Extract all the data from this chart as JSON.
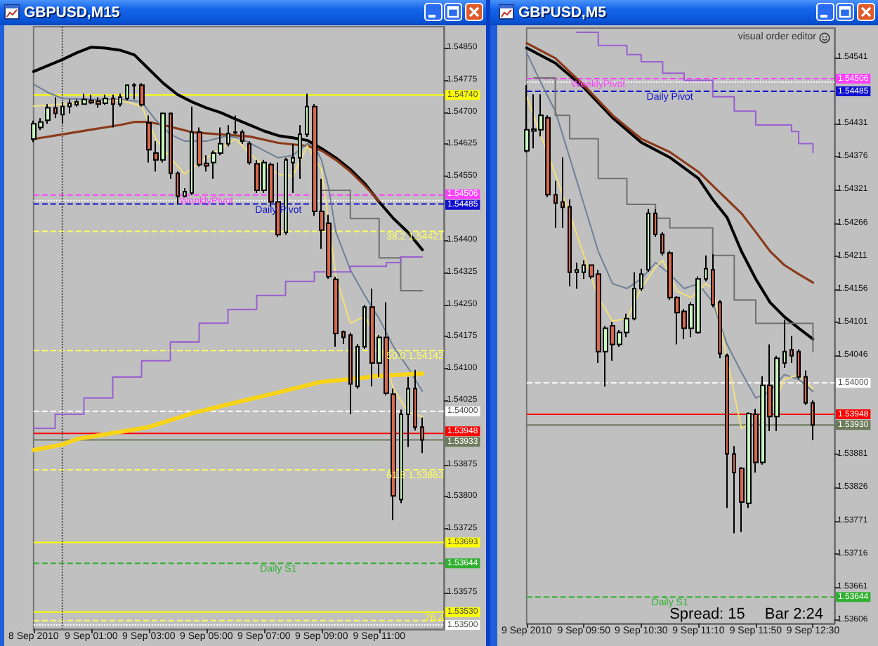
{
  "chart_data": [
    {
      "type": "candlestick",
      "title": "GBPUSD,M15",
      "x": [
        "2010-09-08T23:00",
        "2010-09-08T23:15",
        "2010-09-08T23:30",
        "2010-09-08T23:45",
        "2010-09-09T00:00",
        "2010-09-09T00:15",
        "2010-09-09T00:30",
        "2010-09-09T00:45",
        "2010-09-09T01:00",
        "2010-09-09T01:15",
        "2010-09-09T01:30",
        "2010-09-09T01:45",
        "2010-09-09T02:00",
        "2010-09-09T02:15",
        "2010-09-09T02:30",
        "2010-09-09T02:45",
        "2010-09-09T03:00",
        "2010-09-09T03:15",
        "2010-09-09T03:30",
        "2010-09-09T03:45",
        "2010-09-09T04:00",
        "2010-09-09T04:15",
        "2010-09-09T04:30",
        "2010-09-09T04:45",
        "2010-09-09T05:00",
        "2010-09-09T05:15",
        "2010-09-09T05:30",
        "2010-09-09T05:45",
        "2010-09-09T06:00",
        "2010-09-09T06:15",
        "2010-09-09T06:30",
        "2010-09-09T06:45",
        "2010-09-09T07:00",
        "2010-09-09T07:15",
        "2010-09-09T07:30",
        "2010-09-09T07:45",
        "2010-09-09T08:00",
        "2010-09-09T08:15",
        "2010-09-09T08:30",
        "2010-09-09T08:45",
        "2010-09-09T09:00",
        "2010-09-09T09:15",
        "2010-09-09T09:30",
        "2010-09-09T09:45",
        "2010-09-09T10:00",
        "2010-09-09T10:15",
        "2010-09-09T10:30",
        "2010-09-09T10:45",
        "2010-09-09T11:00",
        "2010-09-09T11:15",
        "2010-09-09T11:30",
        "2010-09-09T11:45",
        "2010-09-09T12:00",
        "2010-09-09T12:15",
        "2010-09-09T12:30"
      ],
      "ohlc": [
        [
          1.54637,
          1.5468,
          1.5463,
          1.54673
        ],
        [
          1.54664,
          1.54686,
          1.54658,
          1.54677
        ],
        [
          1.54681,
          1.54719,
          1.54673,
          1.5471
        ],
        [
          1.5471,
          1.54735,
          1.54686,
          1.54697
        ],
        [
          1.54694,
          1.54724,
          1.54673,
          1.54713
        ],
        [
          1.54713,
          1.5473,
          1.54697,
          1.54721
        ],
        [
          1.54717,
          1.5473,
          1.54713,
          1.54724
        ],
        [
          1.54719,
          1.54743,
          1.54717,
          1.5473
        ],
        [
          1.54727,
          1.54741,
          1.54719,
          1.54722
        ],
        [
          1.54726,
          1.54735,
          1.5471,
          1.54719
        ],
        [
          1.54721,
          1.54741,
          1.54717,
          1.54732
        ],
        [
          1.54732,
          1.54741,
          1.54664,
          1.54719
        ],
        [
          1.54719,
          1.54743,
          1.54713,
          1.54735
        ],
        [
          1.54732,
          1.54765,
          1.54728,
          1.54763
        ],
        [
          1.54763,
          1.54768,
          1.5473,
          1.54762
        ],
        [
          1.54763,
          1.54768,
          1.54713,
          1.54717
        ],
        [
          1.54675,
          1.54692,
          1.54582,
          1.54612
        ],
        [
          1.54604,
          1.54632,
          1.54561,
          1.54588
        ],
        [
          1.54588,
          1.54699,
          1.54582,
          1.54697
        ],
        [
          1.54697,
          1.54699,
          1.54544,
          1.54557
        ],
        [
          1.54557,
          1.54561,
          1.54484,
          1.54503
        ],
        [
          1.54503,
          1.54522,
          1.54501,
          1.54514
        ],
        [
          1.54511,
          1.54713,
          1.54506,
          1.54653
        ],
        [
          1.54653,
          1.54664,
          1.54572,
          1.54577
        ],
        [
          1.5458,
          1.54599,
          1.54561,
          1.54574
        ],
        [
          1.54582,
          1.5461,
          1.54544,
          1.54604
        ],
        [
          1.54604,
          1.54664,
          1.54599,
          1.54626
        ],
        [
          1.54626,
          1.5467,
          1.5462,
          1.5465
        ],
        [
          1.54652,
          1.54692,
          1.54648,
          1.54653
        ],
        [
          1.54653,
          1.54659,
          1.54626,
          1.54632
        ],
        [
          1.54626,
          1.54632,
          1.54577,
          1.54582
        ],
        [
          1.54579,
          1.54588,
          1.54511,
          1.54517
        ],
        [
          1.54517,
          1.54588,
          1.54511,
          1.54582
        ],
        [
          1.54577,
          1.54582,
          1.54479,
          1.5449
        ],
        [
          1.5449,
          1.54582,
          1.54408,
          1.54413
        ],
        [
          1.54419,
          1.54593,
          1.54413,
          1.54588
        ],
        [
          1.54582,
          1.54626,
          1.54511,
          1.54593
        ],
        [
          1.54593,
          1.5467,
          1.54544,
          1.54648
        ],
        [
          1.54648,
          1.54743,
          1.54642,
          1.54713
        ],
        [
          1.54713,
          1.54719,
          1.54457,
          1.54468
        ],
        [
          1.54468,
          1.54544,
          1.5438,
          1.54424
        ],
        [
          1.5444,
          1.5446,
          1.5431,
          1.54315
        ],
        [
          1.54309,
          1.54315,
          1.54151,
          1.54182
        ],
        [
          1.54186,
          1.54189,
          1.54157,
          1.54173
        ],
        [
          1.54178,
          1.54184,
          1.53993,
          1.54064
        ],
        [
          1.54058,
          1.54157,
          1.54053,
          1.54151
        ],
        [
          1.54151,
          1.54249,
          1.54146,
          1.54244
        ],
        [
          1.54244,
          1.54287,
          1.54058,
          1.54113
        ],
        [
          1.54113,
          1.54178,
          1.5408,
          1.54173
        ],
        [
          1.54173,
          1.54255,
          1.54037,
          1.54042
        ],
        [
          1.5404,
          1.54053,
          1.53745,
          1.53802
        ],
        [
          1.53793,
          1.54004,
          1.53785,
          1.53993
        ],
        [
          1.53993,
          1.5408,
          1.53916,
          1.54053
        ],
        [
          1.54053,
          1.54097,
          1.53955,
          1.53963
        ],
        [
          1.53963,
          1.53985,
          1.53902,
          1.53933
        ]
      ],
      "colors": [
        "#c8f8c0",
        "#c8f8c0",
        "#c8f8c0",
        "#d8694d",
        "#c8f8c0",
        "#c8f8c0",
        "#c8f8c0",
        "#c8f8c0",
        "#d8694d",
        "#d8694d",
        "#c8f8c0",
        "#d8694d",
        "#c8f8c0",
        "#c8f8c0",
        "#d8694d",
        "#d8694d",
        "#d8694d",
        "#d8694d",
        "#c8f8c0",
        "#d8694d",
        "#d8694d",
        "#c8f8c0",
        "#c8f8c0",
        "#d8694d",
        "#d8694d",
        "#c8f8c0",
        "#c8f8c0",
        "#c8f8c0",
        "#c8f8c0",
        "#d8694d",
        "#d8694d",
        "#d8694d",
        "#c8f8c0",
        "#d8694d",
        "#d8694d",
        "#c8f8c0",
        "#c8f8c0",
        "#c8f8c0",
        "#c8f8c0",
        "#d8694d",
        "#d8694d",
        "#d8694d",
        "#d8694d",
        "#d8694d",
        "#d8694d",
        "#c8f8c0",
        "#c8f8c0",
        "#d8694d",
        "#c8f8c0",
        "#d8694d",
        "#d8694d",
        "#c8f8c0",
        "#c8f8c0",
        "#d8694d",
        "#d8694d"
      ],
      "series": [
        {
          "type": "line",
          "color": "#000000",
          "x": [
            "2010-09-08T23:00",
            "2010-09-09T00:00",
            "2010-09-09T00:30",
            "2010-09-09T01:00",
            "2010-09-09T01:30",
            "2010-09-09T02:00",
            "2010-09-09T02:30",
            "2010-09-09T03:00",
            "2010-09-09T03:30",
            "2010-09-09T04:00",
            "2010-09-09T04:30",
            "2010-09-09T05:00",
            "2010-09-09T05:30",
            "2010-09-09T06:00",
            "2010-09-09T06:30",
            "2010-09-09T07:00",
            "2010-09-09T07:30",
            "2010-09-09T08:00",
            "2010-09-09T08:30",
            "2010-09-09T09:00",
            "2010-09-09T09:30",
            "2010-09-09T10:00",
            "2010-09-09T10:30",
            "2010-09-09T11:00",
            "2010-09-09T11:30",
            "2010-09-09T12:00",
            "2010-09-09T12:30"
          ],
          "values": [
            1.54795,
            1.54823,
            1.54839,
            1.54852,
            1.5485,
            1.54845,
            1.54834,
            1.54801,
            1.54768,
            1.54741,
            1.54724,
            1.5471,
            1.54699,
            1.54684,
            1.5467,
            1.54656,
            1.54645,
            1.5464,
            1.54634,
            1.54615,
            1.54593,
            1.54566,
            1.54533,
            1.5449,
            1.54451,
            1.54419,
            1.54378
          ]
        },
        {
          "type": "line",
          "color": "#8b3a1a",
          "x": [
            "2010-09-08T23:00",
            "2010-09-09T00:00",
            "2010-09-09T01:00",
            "2010-09-09T02:00",
            "2010-09-09T02:30",
            "2010-09-09T03:00",
            "2010-09-09T03:30",
            "2010-09-09T04:30",
            "2010-09-09T05:30",
            "2010-09-09T06:30",
            "2010-09-09T07:30",
            "2010-09-09T08:30",
            "2010-09-09T09:00",
            "2010-09-09T09:30",
            "2010-09-09T10:00",
            "2010-09-09T10:30",
            "2010-09-09T11:00"
          ],
          "values": [
            1.54637,
            1.54648,
            1.54659,
            1.5467,
            1.54677,
            1.54677,
            1.5467,
            1.54653,
            1.54648,
            1.54643,
            1.54628,
            1.54621,
            1.5461,
            1.54588,
            1.54561,
            1.54528,
            1.54492
          ]
        },
        {
          "type": "line",
          "color": "#6e7f96",
          "x": [
            "2010-09-08T23:00",
            "2010-09-08T23:30",
            "2010-09-09T00:00",
            "2010-09-09T01:00",
            "2010-09-09T02:00",
            "2010-09-09T02:45",
            "2010-09-09T03:15",
            "2010-09-09T03:45",
            "2010-09-09T04:15",
            "2010-09-09T05:00",
            "2010-09-09T05:45",
            "2010-09-09T06:15",
            "2010-09-09T07:00",
            "2010-09-09T07:30",
            "2010-09-09T08:00",
            "2010-09-09T08:30",
            "2010-09-09T08:45",
            "2010-09-09T09:00",
            "2010-09-09T09:15",
            "2010-09-09T09:30",
            "2010-09-09T10:00",
            "2010-09-09T10:30",
            "2010-09-09T11:00",
            "2010-09-09T11:30",
            "2010-09-09T12:00",
            "2010-09-09T12:30"
          ],
          "values": [
            1.54765,
            1.54746,
            1.54732,
            1.5473,
            1.5473,
            1.54724,
            1.54681,
            1.54648,
            1.54632,
            1.54632,
            1.54645,
            1.54637,
            1.5461,
            1.54593,
            1.54599,
            1.54626,
            1.54621,
            1.54588,
            1.54522,
            1.54419,
            1.54331,
            1.54271,
            1.54217,
            1.54151,
            1.54102,
            1.54047
          ]
        },
        {
          "type": "line",
          "color": "#f2e07a",
          "x": [
            "2010-09-08T23:00",
            "2010-09-09T00:00",
            "2010-09-09T01:00",
            "2010-09-09T02:00",
            "2010-09-09T02:45",
            "2010-09-09T03:15",
            "2010-09-09T03:45",
            "2010-09-09T04:15",
            "2010-09-09T04:45",
            "2010-09-09T05:30",
            "2010-09-09T06:00",
            "2010-09-09T06:45",
            "2010-09-09T07:30",
            "2010-09-09T08:00",
            "2010-09-09T08:30",
            "2010-09-09T09:00",
            "2010-09-09T09:30",
            "2010-09-09T10:00",
            "2010-09-09T10:30",
            "2010-09-09T11:00",
            "2010-09-09T11:30",
            "2010-09-09T12:00",
            "2010-09-09T12:30"
          ],
          "values": [
            1.54714,
            1.54719,
            1.54724,
            1.54728,
            1.54714,
            1.54637,
            1.54593,
            1.54555,
            1.54582,
            1.54615,
            1.54637,
            1.54588,
            1.54555,
            1.5455,
            1.54621,
            1.54566,
            1.54315,
            1.54206,
            1.54222,
            1.54162,
            1.54053,
            1.53998,
            1.53987
          ]
        },
        {
          "type": "step",
          "color": "#707070",
          "x": [
            "2010-09-09T09:00",
            "2010-09-09T10:00",
            "2010-09-09T11:00",
            "2010-09-09T11:45",
            "2010-09-09T12:30"
          ],
          "values": [
            1.54517,
            1.54451,
            1.54359,
            1.54282,
            1.54282
          ]
        },
        {
          "type": "step",
          "color": "#9a5fd0",
          "x": [
            "2010-09-08T23:00",
            "2010-09-08T23:45",
            "2010-09-09T00:45",
            "2010-09-09T01:45",
            "2010-09-09T02:45",
            "2010-09-09T03:45",
            "2010-09-09T04:45",
            "2010-09-09T05:45",
            "2010-09-09T06:45",
            "2010-09-09T07:45",
            "2010-09-09T08:45",
            "2010-09-09T10:00",
            "2010-09-09T11:15",
            "2010-09-09T11:45",
            "2010-09-09T12:30"
          ],
          "values": [
            1.5396,
            1.53993,
            1.54031,
            1.5408,
            1.54118,
            1.54162,
            1.54206,
            1.54238,
            1.54271,
            1.54304,
            1.54326,
            1.54339,
            1.54348,
            1.54361,
            1.54361
          ]
        },
        {
          "type": "line",
          "color": "#f7d31a",
          "x": [
            "2010-09-08T23:00",
            "2010-09-09T00:00",
            "2010-09-09T00:30",
            "2010-09-09T01:30",
            "2010-09-09T03:00",
            "2010-09-09T04:30",
            "2010-09-09T06:00",
            "2010-09-09T07:30",
            "2010-09-09T09:00",
            "2010-09-09T10:00",
            "2010-09-09T11:00",
            "2010-09-09T12:30"
          ],
          "values": [
            1.53909,
            1.53922,
            1.53935,
            1.53946,
            1.53963,
            1.53995,
            1.5402,
            1.54044,
            1.54069,
            1.54075,
            1.54083,
            1.54088
          ]
        }
      ],
      "xlim": [
        "2010-09-08T23:00",
        "2010-09-09T13:15"
      ],
      "xticks": [
        {
          "value": "2010-09-08T23:00",
          "label": "8 Sep 2010"
        },
        {
          "value": "2010-09-09T01:00",
          "label": "9 Sep 01:00"
        },
        {
          "value": "2010-09-09T03:00",
          "label": "9 Sep 03:00"
        },
        {
          "value": "2010-09-09T05:00",
          "label": "9 Sep 05:00"
        },
        {
          "value": "2010-09-09T07:00",
          "label": "9 Sep 07:00"
        },
        {
          "value": "2010-09-09T09:00",
          "label": "9 Sep 09:00"
        },
        {
          "value": "2010-09-09T11:00",
          "label": "9 Sep 11:00"
        }
      ],
      "ylim": [
        1.5349,
        1.549
      ],
      "yticks": [
        {
          "value": 1.5485,
          "label": "1.54850"
        },
        1.54775,
        {
          "value": 1.547,
          "label": "1.54700"
        },
        1.54625,
        {
          "value": 1.5455,
          "label": "1.54550"
        },
        {
          "value": 1.544,
          "label": "1.54400"
        },
        1.54325,
        {
          "value": 1.5425,
          "label": "1.54250"
        },
        1.54175,
        {
          "value": 1.541,
          "label": "1.54100"
        },
        1.54025,
        1.53875,
        {
          "value": 1.538,
          "label": "1.53800"
        },
        1.53725,
        1.53575
      ],
      "ref_lines": [
        {
          "axis": "y",
          "value": 1.5474,
          "label": "1.54740",
          "color": "#ffff00"
        },
        {
          "axis": "y",
          "value": 1.54506,
          "label": "1.54506",
          "color": "#ff40ff",
          "line_style": "dashed"
        },
        {
          "axis": "y",
          "value": 1.54493,
          "color": "#ffffff",
          "line_style": "dotted"
        },
        {
          "axis": "y",
          "value": 1.54485,
          "label": "1.54485",
          "color": "#1010d0",
          "line_style": "dashed"
        },
        {
          "axis": "y",
          "value": 1.54421,
          "color": "#ffff60",
          "line_style": "dashed"
        },
        {
          "axis": "y",
          "value": 1.54142,
          "color": "#ffff60",
          "line_style": "dashed"
        },
        {
          "axis": "y",
          "value": 1.54,
          "label": "1.54000",
          "color": "#ffffff",
          "line_style": "dashed"
        },
        {
          "axis": "y",
          "value": 1.53948,
          "label": "1.53948",
          "color": "#ff0000"
        },
        {
          "axis": "y",
          "value": 1.53933,
          "label": "1.53933",
          "color": "#6b7a5a"
        },
        {
          "axis": "y",
          "value": 1.53863,
          "color": "#ffff60",
          "line_style": "dashed"
        },
        {
          "axis": "y",
          "value": 1.53693,
          "label": "1.53693",
          "color": "#ffff00"
        },
        {
          "axis": "y",
          "value": 1.53644,
          "label": "1.53644",
          "color": "#30b030",
          "line_style": "dashed"
        },
        {
          "axis": "y",
          "value": 1.5353,
          "label": "1.53530",
          "color": "#ffff00"
        },
        {
          "axis": "y",
          "value": 1.5351,
          "color": "#ffff60",
          "line_style": "dashed"
        },
        {
          "axis": "y",
          "value": 1.535,
          "label": "1.53500",
          "color": "#ffffff",
          "line_style": "dotted"
        },
        {
          "axis": "x",
          "value": "2010-09-09T00:00",
          "color": "#505050",
          "line_style": "dotted"
        }
      ],
      "annotations": [
        {
          "text": "WeeklyPivot",
          "x": "2010-09-09T05:00",
          "y": 1.54506
        },
        {
          "text": "Daily Pivot",
          "x": "2010-09-09T07:30",
          "y": 1.54485
        },
        {
          "text": "38.2 1.54421",
          "x": "2010-09-09T12:15",
          "y": 1.54421
        },
        {
          "text": "50.0 1.54142",
          "x": "2010-09-09T12:15",
          "y": 1.54142
        },
        {
          "text": "61.8 1.53863",
          "x": "2010-09-09T12:15",
          "y": 1.53863
        },
        {
          "text": "Daily S1",
          "x": "2010-09-09T07:30",
          "y": 1.53644
        },
        {
          "text": "76.4",
          "x": "2010-09-09T12:55",
          "y": 1.5353
        }
      ]
    },
    {
      "type": "candlestick",
      "title": "GBPUSD,M5",
      "x": [
        "2010-09-09T09:10",
        "2010-09-09T09:15",
        "2010-09-09T09:20",
        "2010-09-09T09:25",
        "2010-09-09T09:30",
        "2010-09-09T09:35",
        "2010-09-09T09:40",
        "2010-09-09T09:45",
        "2010-09-09T09:50",
        "2010-09-09T09:55",
        "2010-09-09T10:00",
        "2010-09-09T10:05",
        "2010-09-09T10:10",
        "2010-09-09T10:15",
        "2010-09-09T10:20",
        "2010-09-09T10:25",
        "2010-09-09T10:30",
        "2010-09-09T10:35",
        "2010-09-09T10:40",
        "2010-09-09T10:45",
        "2010-09-09T10:50",
        "2010-09-09T10:55",
        "2010-09-09T11:00",
        "2010-09-09T11:05",
        "2010-09-09T11:10",
        "2010-09-09T11:15",
        "2010-09-09T11:20",
        "2010-09-09T11:25",
        "2010-09-09T11:30",
        "2010-09-09T11:35",
        "2010-09-09T11:40",
        "2010-09-09T11:45",
        "2010-09-09T11:50",
        "2010-09-09T11:55",
        "2010-09-09T12:00",
        "2010-09-09T12:05",
        "2010-09-09T12:10",
        "2010-09-09T12:15",
        "2010-09-09T12:20",
        "2010-09-09T12:25",
        "2010-09-09T12:30"
      ],
      "ohlc": [
        [
          1.54386,
          1.54495,
          1.54383,
          1.54421
        ],
        [
          1.54419,
          1.5448,
          1.5439,
          1.54422
        ],
        [
          1.54421,
          1.5448,
          1.5441,
          1.54445
        ],
        [
          1.54441,
          1.54445,
          1.54309,
          1.54313
        ],
        [
          1.54313,
          1.54336,
          1.54258,
          1.54299
        ],
        [
          1.54301,
          1.54375,
          1.54258,
          1.54292
        ],
        [
          1.54293,
          1.54305,
          1.54161,
          1.54184
        ],
        [
          1.54184,
          1.542,
          1.54157,
          1.54188
        ],
        [
          1.54184,
          1.54204,
          1.54173,
          1.54196
        ],
        [
          1.54196,
          1.54197,
          1.54173,
          1.54177
        ],
        [
          1.54181,
          1.54188,
          1.54033,
          1.54052
        ],
        [
          1.54052,
          1.54095,
          1.53994,
          1.54091
        ],
        [
          1.54095,
          1.54101,
          1.54037,
          1.54064
        ],
        [
          1.54064,
          1.54088,
          1.5406,
          1.54084
        ],
        [
          1.54084,
          1.54115,
          1.54076,
          1.54107
        ],
        [
          1.54107,
          1.54184,
          1.54104,
          1.54157
        ],
        [
          1.54157,
          1.5419,
          1.54153,
          1.54181
        ],
        [
          1.54188,
          1.54289,
          1.54185,
          1.54282
        ],
        [
          1.54282,
          1.54289,
          1.54243,
          1.54247
        ],
        [
          1.54247,
          1.54251,
          1.54212,
          1.54216
        ],
        [
          1.54216,
          1.5422,
          1.54138,
          1.54142
        ],
        [
          1.54142,
          1.54144,
          1.54064,
          1.54117
        ],
        [
          1.54119,
          1.54123,
          1.54073,
          1.54091
        ],
        [
          1.54091,
          1.54134,
          1.54076,
          1.5413
        ],
        [
          1.54084,
          1.54177,
          1.54082,
          1.54173
        ],
        [
          1.54173,
          1.54212,
          1.54169,
          1.5419
        ],
        [
          1.54188,
          1.54214,
          1.54126,
          1.5413
        ],
        [
          1.54134,
          1.54138,
          1.54041,
          1.54049
        ],
        [
          1.54045,
          1.54049,
          1.53792,
          1.53882
        ],
        [
          1.53882,
          1.53895,
          1.5375,
          1.53851
        ],
        [
          1.53858,
          1.5386,
          1.53752,
          1.53802
        ],
        [
          1.538,
          1.53951,
          1.53792,
          1.53949
        ],
        [
          1.53948,
          1.53957,
          1.53851,
          1.53868
        ],
        [
          1.53868,
          1.54011,
          1.53864,
          1.53996
        ],
        [
          1.53996,
          1.54064,
          1.5392,
          1.53944
        ],
        [
          1.53944,
          1.54045,
          1.5392,
          1.54041
        ],
        [
          1.54033,
          1.54105,
          1.54025,
          1.54052
        ],
        [
          1.54055,
          1.54078,
          1.54033,
          1.54045
        ],
        [
          1.54052,
          1.54056,
          1.54006,
          1.5401
        ],
        [
          1.5401,
          1.54021,
          1.53963,
          1.53967
        ],
        [
          1.53967,
          1.53971,
          1.53905,
          1.5393
        ]
      ],
      "colors": [
        "#c8f8c0",
        "#c8f8c0",
        "#c8f8c0",
        "#d8694d",
        "#d8694d",
        "#d8694d",
        "#d8694d",
        "#c8f8c0",
        "#c8f8c0",
        "#d8694d",
        "#d8694d",
        "#c8f8c0",
        "#d8694d",
        "#c8f8c0",
        "#c8f8c0",
        "#c8f8c0",
        "#c8f8c0",
        "#c8f8c0",
        "#d8694d",
        "#d8694d",
        "#d8694d",
        "#d8694d",
        "#d8694d",
        "#c8f8c0",
        "#c8f8c0",
        "#c8f8c0",
        "#d8694d",
        "#d8694d",
        "#d8694d",
        "#d8694d",
        "#d8694d",
        "#c8f8c0",
        "#d8694d",
        "#c8f8c0",
        "#d8694d",
        "#c8f8c0",
        "#c8f8c0",
        "#d8694d",
        "#d8694d",
        "#d8694d",
        "#d8694d"
      ],
      "series": [
        {
          "type": "line",
          "color": "#000000",
          "x": [
            "2010-09-09T09:10",
            "2010-09-09T09:30",
            "2010-09-09T09:50",
            "2010-09-09T10:10",
            "2010-09-09T10:30",
            "2010-09-09T10:50",
            "2010-09-09T11:10",
            "2010-09-09T11:20",
            "2010-09-09T11:30",
            "2010-09-09T11:40",
            "2010-09-09T11:50",
            "2010-09-09T12:00",
            "2010-09-09T12:10",
            "2010-09-09T12:20",
            "2010-09-09T12:30"
          ],
          "values": [
            1.54557,
            1.54532,
            1.54491,
            1.54441,
            1.544,
            1.54375,
            1.5434,
            1.54305,
            1.54275,
            1.54219,
            1.54173,
            1.54134,
            1.5411,
            1.54091,
            1.54073
          ]
        },
        {
          "type": "line",
          "color": "#8b3a1a",
          "x": [
            "2010-09-09T09:10",
            "2010-09-09T09:30",
            "2010-09-09T09:50",
            "2010-09-09T10:10",
            "2010-09-09T10:30",
            "2010-09-09T10:50",
            "2010-09-09T11:10",
            "2010-09-09T11:30",
            "2010-09-09T11:40",
            "2010-09-09T11:50",
            "2010-09-09T12:00",
            "2010-09-09T12:10",
            "2010-09-09T12:20",
            "2010-09-09T12:30"
          ],
          "values": [
            1.54565,
            1.5454,
            1.54495,
            1.54445,
            1.54406,
            1.54384,
            1.54351,
            1.54305,
            1.54282,
            1.54251,
            1.54219,
            1.54196,
            1.54181,
            1.54167
          ]
        },
        {
          "type": "line",
          "color": "#6e7f96",
          "x": [
            "2010-09-09T09:10",
            "2010-09-09T09:20",
            "2010-09-09T09:30",
            "2010-09-09T09:40",
            "2010-09-09T09:50",
            "2010-09-09T10:00",
            "2010-09-09T10:10",
            "2010-09-09T10:20",
            "2010-09-09T10:30",
            "2010-09-09T10:40",
            "2010-09-09T10:50",
            "2010-09-09T11:00",
            "2010-09-09T11:10",
            "2010-09-09T11:20",
            "2010-09-09T11:30",
            "2010-09-09T11:40",
            "2010-09-09T11:50",
            "2010-09-09T12:00",
            "2010-09-09T12:10",
            "2010-09-09T12:20",
            "2010-09-09T12:30"
          ],
          "values": [
            1.54549,
            1.54499,
            1.54452,
            1.54375,
            1.54297,
            1.54219,
            1.54165,
            1.54157,
            1.54173,
            1.542,
            1.54181,
            1.54157,
            1.54165,
            1.54134,
            1.54064,
            1.54018,
            1.53975,
            1.53986,
            1.54014,
            1.54006,
            1.53986
          ]
        },
        {
          "type": "line",
          "color": "#f2e07a",
          "x": [
            "2010-09-09T09:10",
            "2010-09-09T09:40",
            "2010-09-09T09:50",
            "2010-09-09T10:00",
            "2010-09-09T10:10",
            "2010-09-09T10:20",
            "2010-09-09T10:30",
            "2010-09-09T10:40",
            "2010-09-09T10:45",
            "2010-09-09T10:55",
            "2010-09-09T11:05",
            "2010-09-09T11:15",
            "2010-09-09T11:20",
            "2010-09-09T11:40",
            "2010-09-09T11:50",
            "2010-09-09T12:00",
            "2010-09-09T12:10",
            "2010-09-09T12:20",
            "2010-09-09T12:30"
          ],
          "values": [
            1.54476,
            1.54282,
            1.54212,
            1.54142,
            1.54103,
            1.54107,
            1.54157,
            1.54192,
            1.54204,
            1.54153,
            1.54142,
            1.54165,
            1.54157,
            1.53924,
            1.5394,
            1.53951,
            1.54006,
            1.54014,
            1.5399
          ]
        },
        {
          "type": "step",
          "color": "#707070",
          "x": [
            "2010-09-09T09:15",
            "2010-09-09T09:30",
            "2010-09-09T09:40",
            "2010-09-09T10:00",
            "2010-09-09T10:20",
            "2010-09-09T10:40",
            "2010-09-09T10:50",
            "2010-09-09T11:20",
            "2010-09-09T11:35",
            "2010-09-09T11:50",
            "2010-09-09T12:30"
          ],
          "values": [
            1.54507,
            1.54445,
            1.54406,
            1.5434,
            1.54297,
            1.54274,
            1.54258,
            1.54212,
            1.54138,
            1.54099,
            1.54052
          ]
        },
        {
          "type": "step",
          "color": "#9a5fd0",
          "x": [
            "2010-09-09T09:45",
            "2010-09-09T10:00",
            "2010-09-09T10:20",
            "2010-09-09T10:30",
            "2010-09-09T10:45",
            "2010-09-09T11:00",
            "2010-09-09T11:20",
            "2010-09-09T11:35",
            "2010-09-09T11:50",
            "2010-09-09T12:15",
            "2010-09-09T12:20",
            "2010-09-09T12:30"
          ],
          "values": [
            1.54583,
            1.54561,
            1.54546,
            1.54534,
            1.54515,
            1.54503,
            1.54476,
            1.54452,
            1.54429,
            1.54418,
            1.54398,
            1.54383
          ]
        }
      ],
      "xlim": [
        "2010-09-09T09:10",
        "2010-09-09T12:45"
      ],
      "xticks": [
        {
          "value": "2010-09-09T09:10",
          "label": "9 Sep 2010"
        },
        {
          "value": "2010-09-09T09:50",
          "label": "9 Sep 09:50"
        },
        {
          "value": "2010-09-09T10:30",
          "label": "9 Sep 10:30"
        },
        {
          "value": "2010-09-09T11:10",
          "label": "9 Sep 11:10"
        },
        {
          "value": "2010-09-09T11:50",
          "label": "9 Sep 11:50"
        },
        {
          "value": "2010-09-09T12:30",
          "label": "9 Sep 12:30"
        }
      ],
      "ylim": [
        1.536,
        1.5459
      ],
      "yticks": [
        1.54541,
        1.54431,
        1.54376,
        1.54321,
        1.54266,
        1.54211,
        1.54156,
        1.54101,
        1.54046,
        1.53881,
        1.53826,
        1.53771,
        1.53716,
        1.53661,
        1.53606
      ],
      "ref_lines": [
        {
          "axis": "y",
          "value": 1.54506,
          "label": "1.54506",
          "color": "#ff40ff",
          "line_style": "dashed"
        },
        {
          "axis": "y",
          "value": 1.545,
          "color": "#ffffff",
          "line_style": "dotted"
        },
        {
          "axis": "y",
          "value": 1.54485,
          "label": "1.54485",
          "color": "#1010d0",
          "line_style": "dashed"
        },
        {
          "axis": "y",
          "value": 1.54,
          "label": "1.54000",
          "color": "#ffffff",
          "line_style": "dashed"
        },
        {
          "axis": "y",
          "value": 1.53948,
          "label": "1.53948",
          "color": "#ff0000"
        },
        {
          "axis": "y",
          "value": 1.5393,
          "label": "1.53930",
          "color": "#6b7a5a"
        },
        {
          "axis": "y",
          "value": 1.53644,
          "label": "1.53644",
          "color": "#30b030",
          "line_style": "dashed"
        }
      ],
      "annotations": [
        "visual order editor",
        {
          "text": "WeeklyPivot",
          "x": "2010-09-09T10:00",
          "y": 1.54506
        },
        {
          "text": "Daily Pivot",
          "x": "2010-09-09T10:50",
          "y": 1.54485
        },
        {
          "text": "Daily S1",
          "x": "2010-09-09T10:50",
          "y": 1.53644
        },
        "Spread: 15",
        "Bar 2:24"
      ]
    }
  ]
}
